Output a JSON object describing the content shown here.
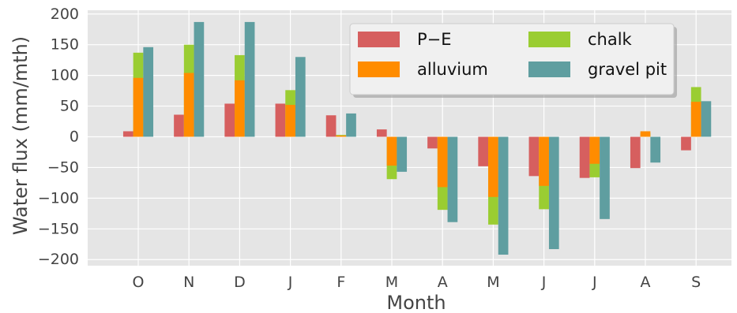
{
  "chart_data": {
    "type": "bar",
    "title": "",
    "xlabel": "Month",
    "ylabel": "Water flux (mm/mth)",
    "categories": [
      "O",
      "N",
      "D",
      "J",
      "F",
      "M",
      "A",
      "M",
      "J",
      "J",
      "A",
      "S"
    ],
    "ylim": [
      -210,
      205
    ],
    "yticks": [
      200,
      150,
      100,
      50,
      0,
      -50,
      -100,
      -150,
      -200
    ],
    "ytick_labels": [
      "200",
      "150",
      "100",
      "50",
      "0",
      "−50",
      "−100",
      "−150",
      "−200"
    ],
    "grid": true,
    "legend": {
      "position": "upper-right",
      "columns": 2
    },
    "series": [
      {
        "name": "P−E",
        "color": "#d65f5f",
        "values": [
          9,
          36,
          54,
          54,
          35,
          12,
          -19,
          -48,
          -64,
          -67,
          -51,
          -22
        ]
      },
      {
        "name": "alluvium",
        "color": "#ff8c00",
        "values": [
          96,
          104,
          92,
          52,
          2,
          -47,
          -82,
          -98,
          -80,
          -44,
          9,
          57
        ]
      },
      {
        "name": "chalk",
        "color": "#9acd32",
        "values": [
          137,
          150,
          133,
          76,
          3,
          -69,
          -119,
          -143,
          -118,
          -66,
          6,
          81
        ]
      },
      {
        "name": "gravel pit",
        "color": "#5f9ea0",
        "values": [
          146,
          187,
          187,
          130,
          38,
          -57,
          -139,
          -192,
          -183,
          -134,
          -42,
          58
        ]
      }
    ],
    "stacking_note": ""
  }
}
